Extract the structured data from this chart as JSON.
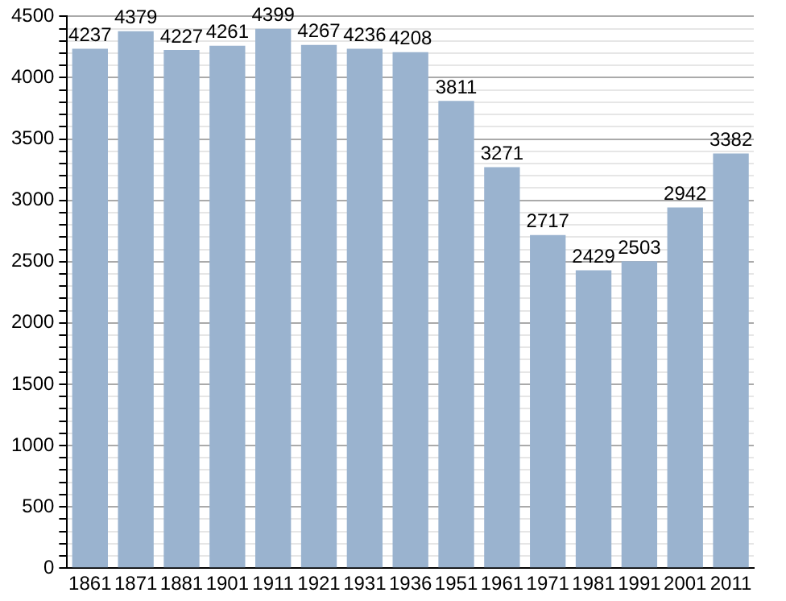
{
  "chart_data": {
    "type": "bar",
    "categories": [
      "1861",
      "1871",
      "1881",
      "1901",
      "1911",
      "1921",
      "1931",
      "1936",
      "1951",
      "1961",
      "1971",
      "1981",
      "1991",
      "2001",
      "2011"
    ],
    "values": [
      4237,
      4379,
      4227,
      4261,
      4399,
      4267,
      4236,
      4208,
      3811,
      3271,
      2717,
      2429,
      2503,
      2942,
      3382
    ],
    "color": "#9ab3cf",
    "data_labels": true,
    "grid": "y",
    "ylim": [
      0,
      4500
    ],
    "yticks": [
      0,
      {
        "value": 100,
        "label": null
      },
      {
        "value": 200,
        "label": null
      },
      {
        "value": 300,
        "label": null
      },
      {
        "value": 400,
        "label": null
      },
      500,
      {
        "value": 600,
        "label": null
      },
      {
        "value": 700,
        "label": null
      },
      {
        "value": 800,
        "label": null
      },
      {
        "value": 900,
        "label": null
      },
      1000,
      {
        "value": 1100,
        "label": null
      },
      {
        "value": 1200,
        "label": null
      },
      {
        "value": 1300,
        "label": null
      },
      {
        "value": 1400,
        "label": null
      },
      1500,
      {
        "value": 1600,
        "label": null
      },
      {
        "value": 1700,
        "label": null
      },
      {
        "value": 1800,
        "label": null
      },
      {
        "value": 1900,
        "label": null
      },
      2000,
      {
        "value": 2100,
        "label": null
      },
      {
        "value": 2200,
        "label": null
      },
      {
        "value": 2300,
        "label": null
      },
      {
        "value": 2400,
        "label": null
      },
      2500,
      {
        "value": 2600,
        "label": null
      },
      {
        "value": 2700,
        "label": null
      },
      {
        "value": 2800,
        "label": null
      },
      {
        "value": 2900,
        "label": null
      },
      3000,
      {
        "value": 3100,
        "label": null
      },
      {
        "value": 3200,
        "label": null
      },
      {
        "value": 3300,
        "label": null
      },
      {
        "value": 3400,
        "label": null
      },
      3500,
      {
        "value": 3600,
        "label": null
      },
      {
        "value": 3700,
        "label": null
      },
      {
        "value": 3800,
        "label": null
      },
      {
        "value": 3900,
        "label": null
      },
      4000,
      {
        "value": 4100,
        "label": null
      },
      {
        "value": 4200,
        "label": null
      },
      {
        "value": 4300,
        "label": null
      },
      {
        "value": 4400,
        "label": null
      },
      4500
    ]
  }
}
